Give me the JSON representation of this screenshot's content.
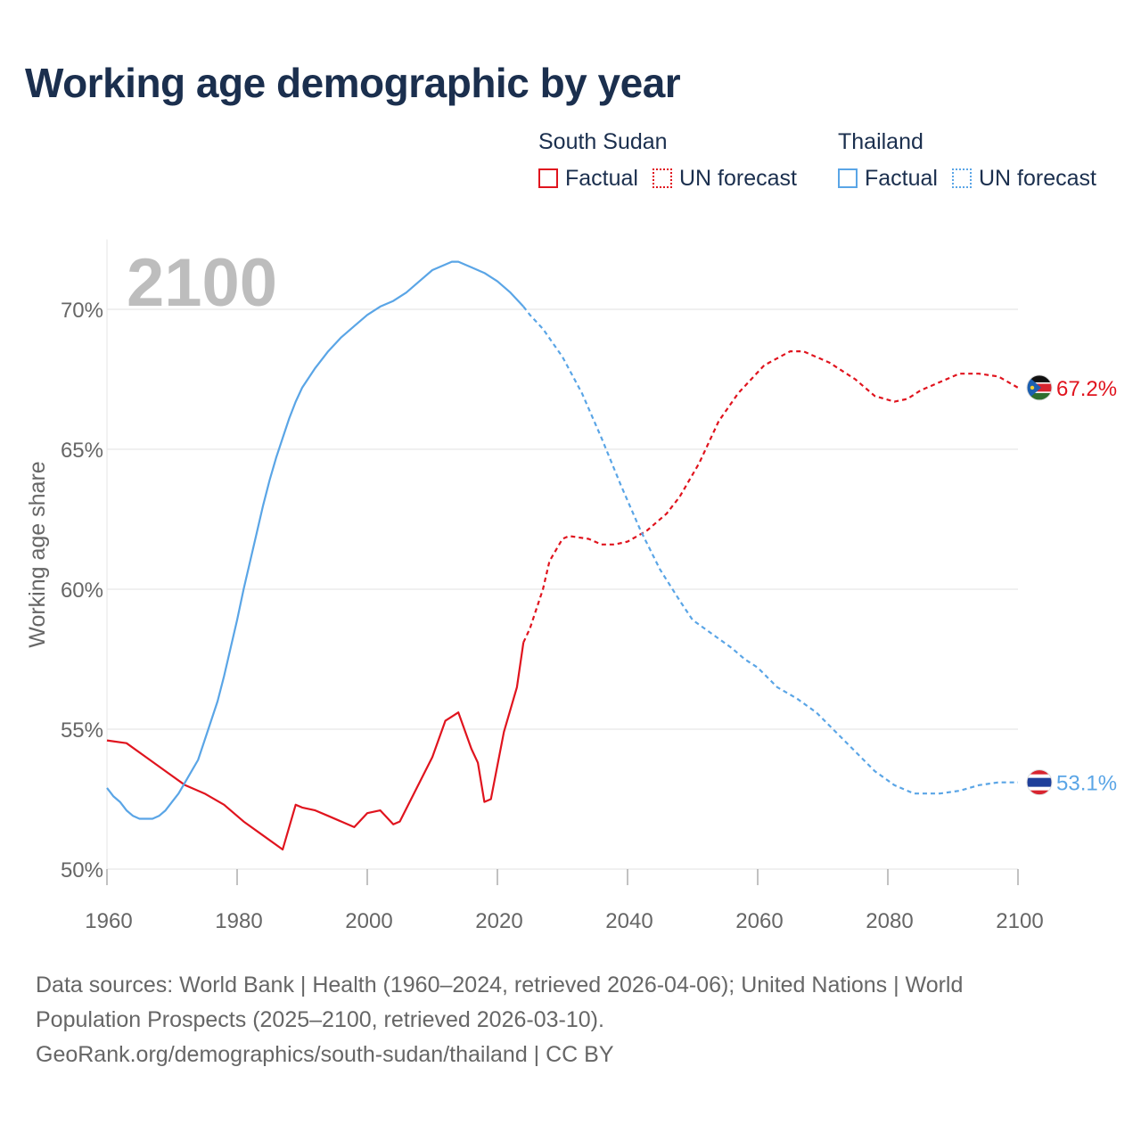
{
  "title": "Working age demographic by year",
  "legend": {
    "groups": [
      {
        "name": "South Sudan",
        "color": "#e0141e",
        "factual_label": "Factual",
        "forecast_label": "UN forecast"
      },
      {
        "name": "Thailand",
        "color": "#5aa5e6",
        "factual_label": "Factual",
        "forecast_label": "UN forecast"
      }
    ]
  },
  "footer": {
    "sources": "Data sources: World Bank | Health (1960–2024, retrieved 2026-04-06); United Nations | World Population Prospects (2025–2100, retrieved 2026-03-10).",
    "credit": "GeoRank.org/demographics/south-sudan/thailand | CC BY"
  },
  "chart_data": {
    "type": "line",
    "title": "Working age demographic by year",
    "year_label": "2100",
    "xlabel": "",
    "ylabel": "Working age share",
    "xlim": [
      1960,
      2100
    ],
    "ylim": [
      50,
      72
    ],
    "xticks": [
      1960,
      1980,
      2000,
      2020,
      2040,
      2060,
      2080,
      2100
    ],
    "xtick_labels": [
      "1960",
      "1980",
      "2000",
      "2020",
      "2040",
      "2060",
      "2080",
      "2100"
    ],
    "yticks": [
      50,
      55,
      60,
      65,
      70
    ],
    "ytick_labels": [
      "50%",
      "55%",
      "60%",
      "65%",
      "70%"
    ],
    "grid": true,
    "factual_end_year": 2024,
    "series": [
      {
        "name": "South Sudan",
        "color": "#e0141e",
        "end_label": "67.2%",
        "flag": "south-sudan-flag",
        "points": [
          [
            1960,
            54.6
          ],
          [
            1963,
            54.5
          ],
          [
            1966,
            54.0
          ],
          [
            1969,
            53.5
          ],
          [
            1972,
            53.0
          ],
          [
            1975,
            52.7
          ],
          [
            1978,
            52.3
          ],
          [
            1981,
            51.7
          ],
          [
            1984,
            51.2
          ],
          [
            1987,
            50.7
          ],
          [
            1989,
            52.3
          ],
          [
            1990,
            52.2
          ],
          [
            1992,
            52.1
          ],
          [
            1994,
            51.9
          ],
          [
            1998,
            51.5
          ],
          [
            2000,
            52.0
          ],
          [
            2002,
            52.1
          ],
          [
            2004,
            51.6
          ],
          [
            2005,
            51.7
          ],
          [
            2010,
            54.0
          ],
          [
            2012,
            55.3
          ],
          [
            2014,
            55.6
          ],
          [
            2016,
            54.3
          ],
          [
            2017,
            53.8
          ],
          [
            2018,
            52.4
          ],
          [
            2019,
            52.5
          ],
          [
            2021,
            54.9
          ],
          [
            2023,
            56.5
          ],
          [
            2024,
            58.1
          ],
          [
            2025,
            58.6
          ],
          [
            2027,
            60.0
          ],
          [
            2028,
            61.0
          ],
          [
            2030,
            61.8
          ],
          [
            2031,
            61.9
          ],
          [
            2034,
            61.8
          ],
          [
            2036,
            61.6
          ],
          [
            2038,
            61.6
          ],
          [
            2040,
            61.7
          ],
          [
            2043,
            62.1
          ],
          [
            2046,
            62.7
          ],
          [
            2048,
            63.3
          ],
          [
            2051,
            64.5
          ],
          [
            2054,
            66.0
          ],
          [
            2057,
            67.0
          ],
          [
            2061,
            68.0
          ],
          [
            2065,
            68.5
          ],
          [
            2067,
            68.5
          ],
          [
            2071,
            68.1
          ],
          [
            2075,
            67.5
          ],
          [
            2078,
            66.9
          ],
          [
            2081,
            66.7
          ],
          [
            2083,
            66.8
          ],
          [
            2085,
            67.1
          ],
          [
            2088,
            67.4
          ],
          [
            2091,
            67.7
          ],
          [
            2094,
            67.7
          ],
          [
            2097,
            67.6
          ],
          [
            2100,
            67.2
          ]
        ]
      },
      {
        "name": "Thailand",
        "color": "#5aa5e6",
        "end_label": "53.1%",
        "flag": "thailand-flag",
        "points": [
          [
            1960,
            52.9
          ],
          [
            1961,
            52.6
          ],
          [
            1962,
            52.4
          ],
          [
            1963,
            52.1
          ],
          [
            1964,
            51.9
          ],
          [
            1965,
            51.8
          ],
          [
            1966,
            51.8
          ],
          [
            1967,
            51.8
          ],
          [
            1968,
            51.9
          ],
          [
            1969,
            52.1
          ],
          [
            1970,
            52.4
          ],
          [
            1971,
            52.7
          ],
          [
            1972,
            53.1
          ],
          [
            1973,
            53.5
          ],
          [
            1974,
            53.9
          ],
          [
            1975,
            54.6
          ],
          [
            1976,
            55.3
          ],
          [
            1977,
            56.0
          ],
          [
            1978,
            56.9
          ],
          [
            1979,
            57.9
          ],
          [
            1980,
            58.9
          ],
          [
            1981,
            60.0
          ],
          [
            1982,
            61.0
          ],
          [
            1983,
            62.0
          ],
          [
            1984,
            63.0
          ],
          [
            1985,
            63.9
          ],
          [
            1986,
            64.7
          ],
          [
            1987,
            65.4
          ],
          [
            1988,
            66.1
          ],
          [
            1989,
            66.7
          ],
          [
            1990,
            67.2
          ],
          [
            1992,
            67.9
          ],
          [
            1994,
            68.5
          ],
          [
            1996,
            69.0
          ],
          [
            1998,
            69.4
          ],
          [
            2000,
            69.8
          ],
          [
            2002,
            70.1
          ],
          [
            2004,
            70.3
          ],
          [
            2006,
            70.6
          ],
          [
            2008,
            71.0
          ],
          [
            2010,
            71.4
          ],
          [
            2012,
            71.6
          ],
          [
            2013,
            71.7
          ],
          [
            2014,
            71.7
          ],
          [
            2016,
            71.5
          ],
          [
            2018,
            71.3
          ],
          [
            2020,
            71.0
          ],
          [
            2022,
            70.6
          ],
          [
            2024,
            70.1
          ],
          [
            2025,
            69.8
          ],
          [
            2027,
            69.3
          ],
          [
            2030,
            68.3
          ],
          [
            2033,
            67.0
          ],
          [
            2036,
            65.4
          ],
          [
            2039,
            63.7
          ],
          [
            2042,
            62.1
          ],
          [
            2045,
            60.7
          ],
          [
            2048,
            59.6
          ],
          [
            2050,
            58.9
          ],
          [
            2053,
            58.4
          ],
          [
            2056,
            57.9
          ],
          [
            2058,
            57.5
          ],
          [
            2060,
            57.2
          ],
          [
            2063,
            56.5
          ],
          [
            2066,
            56.1
          ],
          [
            2069,
            55.6
          ],
          [
            2072,
            54.9
          ],
          [
            2075,
            54.2
          ],
          [
            2078,
            53.5
          ],
          [
            2081,
            53.0
          ],
          [
            2084,
            52.7
          ],
          [
            2088,
            52.7
          ],
          [
            2091,
            52.8
          ],
          [
            2094,
            53.0
          ],
          [
            2097,
            53.1
          ],
          [
            2100,
            53.1
          ]
        ]
      }
    ]
  }
}
